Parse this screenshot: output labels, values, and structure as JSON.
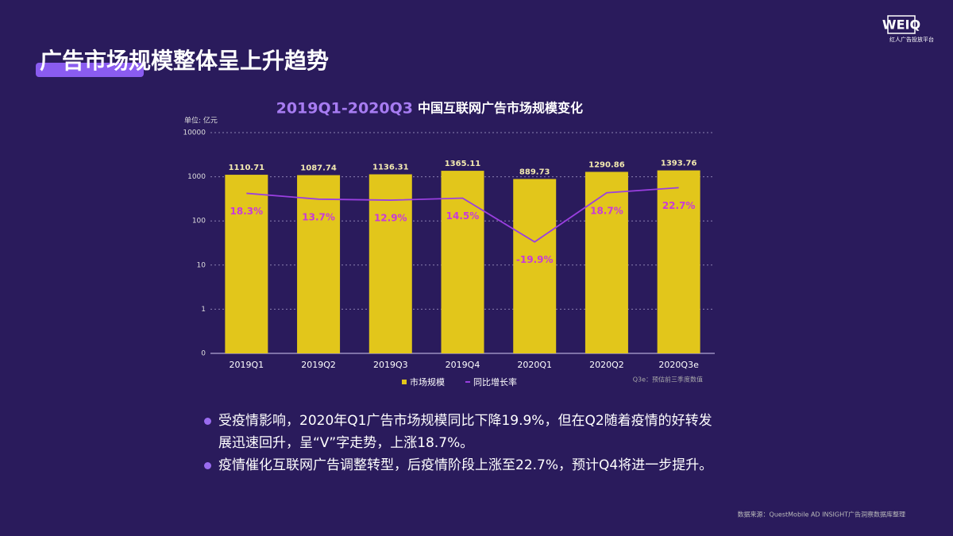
{
  "header": {
    "title": "广告市场规模整体呈上升趋势",
    "logo": "WEIQ",
    "logo_subtitle": "红人广告投放平台"
  },
  "chart_data": {
    "type": "bar",
    "title_period": "2019Q1-2020Q3",
    "title": "中国互联网广告市场规模变化",
    "y_label": "单位: 亿元",
    "note": "Q3e：预估前三季度数值",
    "categories": [
      "2019Q1",
      "2019Q2",
      "2019Q3",
      "2019Q4",
      "2020Q1",
      "2020Q2",
      "2020Q3e"
    ],
    "series": [
      {
        "name": "市场规模",
        "type": "bar",
        "color": "#e2c61b",
        "values": [
          1110.71,
          1087.74,
          1136.31,
          1365.11,
          889.73,
          1290.86,
          1393.76
        ]
      },
      {
        "name": "同比增长率",
        "type": "line",
        "axis": "y2",
        "color": "#9a3fe0",
        "label_color": "#c93ad9",
        "values": [
          18.3,
          13.7,
          12.9,
          14.5,
          -19.9,
          18.7,
          22.7
        ],
        "value_labels": [
          "18.3%",
          "13.7%",
          "12.9%",
          "14.5%",
          "-19.9%",
          "18.7%",
          "22.7%"
        ]
      }
    ],
    "log_scale": true,
    "ylim": [
      0.1,
      10000
    ],
    "yticks": [
      {
        "value": 0.1,
        "label": "0"
      },
      1,
      10,
      100,
      1000,
      10000
    ],
    "y2lim": [
      -107.5,
      66
    ],
    "grid": true,
    "legend": "bottom"
  },
  "bullets": [
    "受疫情影响，2020年Q1广告市场规模同比下降19.9%，但在Q2随着疫情的好转发展迅速回升，呈“V”字走势，上涨18.7%。",
    "疫情催化互联网广告调整转型，后疫情阶段上涨至22.7%，预计Q4将进一步提升。"
  ],
  "source": "数据来源：QuestMobile AD INSIGHT广告洞察数据库整理"
}
